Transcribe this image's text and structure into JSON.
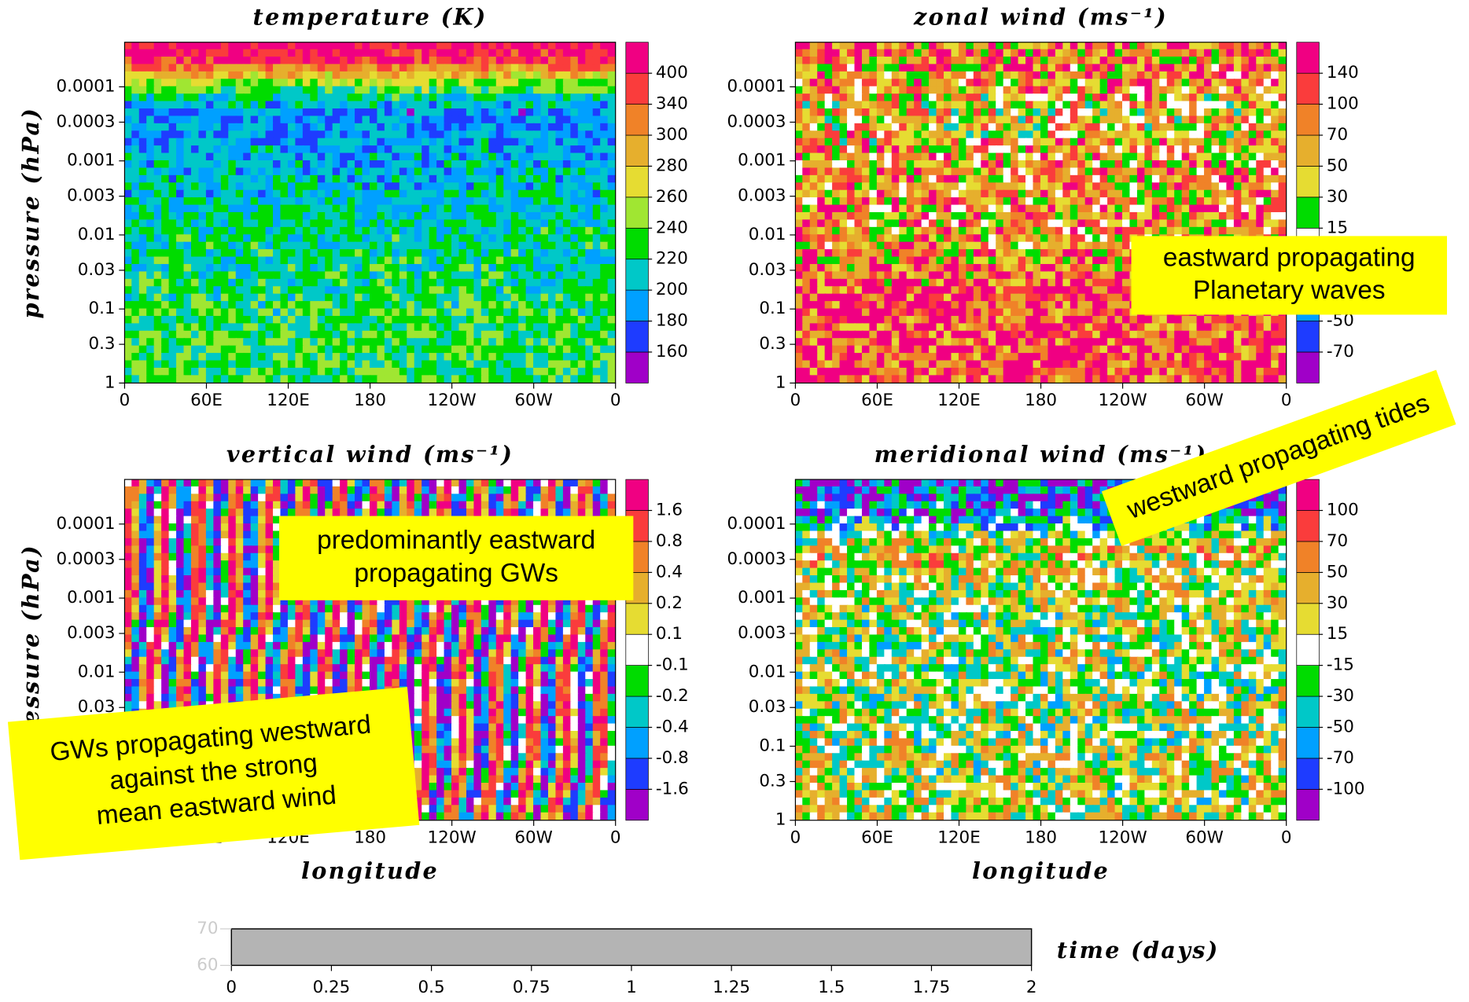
{
  "chart_data": [
    {
      "type": "contour",
      "title": "temperature (K)",
      "ylabel": "pressure (hPa)",
      "xlim": [
        0,
        360
      ],
      "xticks": [
        0,
        {
          "value": 60,
          "label": "60E"
        },
        {
          "value": 120,
          "label": "120E"
        },
        180,
        {
          "value": 240,
          "label": "120W"
        },
        {
          "value": 300,
          "label": "60W"
        },
        {
          "value": 360,
          "label": "0"
        }
      ],
      "ylim": [
        1,
        2.5e-05
      ],
      "ylog": true,
      "yticks": [
        0.0001,
        0.0003,
        0.001,
        0.003,
        0.01,
        0.03,
        0.1,
        0.3,
        1
      ],
      "levels": [
        160,
        180,
        200,
        220,
        240,
        260,
        280,
        300,
        340,
        400
      ],
      "colors": [
        "#a000c8",
        "#1e3cff",
        "#00a0ff",
        "#00c8c8",
        "#00dc00",
        "#a0e632",
        "#e6dc32",
        "#e6af2d",
        "#f08228",
        "#fa3c3c",
        "#f00082"
      ]
    },
    {
      "type": "contour",
      "title": "zonal wind (ms⁻¹)",
      "xlim": [
        0,
        360
      ],
      "xticks": [
        0,
        {
          "value": 60,
          "label": "60E"
        },
        {
          "value": 120,
          "label": "120E"
        },
        180,
        {
          "value": 240,
          "label": "120W"
        },
        {
          "value": 300,
          "label": "60W"
        },
        {
          "value": 360,
          "label": "0"
        }
      ],
      "ylim": [
        1,
        2.5e-05
      ],
      "ylog": true,
      "yticks": [
        0.0001,
        0.0003,
        0.001,
        0.003,
        0.01,
        0.03,
        0.1,
        0.3,
        1
      ],
      "levels": [
        -70,
        -50,
        null,
        null,
        15,
        30,
        50,
        70,
        100,
        140
      ],
      "colors": [
        "#a000c8",
        "#1e3cff",
        "#00a0ff",
        "#00c8c8",
        "#ffffff",
        "#00dc00",
        "#e6dc32",
        "#e6af2d",
        "#f08228",
        "#fa3c3c",
        "#f00082"
      ]
    },
    {
      "type": "contour",
      "title": "vertical wind (ms⁻¹)",
      "ylabel": "pressure (hPa)",
      "xlabel": "longitude",
      "xlim": [
        0,
        360
      ],
      "xticks": [
        0,
        {
          "value": 60,
          "label": "60E"
        },
        {
          "value": 120,
          "label": "120E"
        },
        180,
        {
          "value": 240,
          "label": "120W"
        },
        {
          "value": 300,
          "label": "60W"
        },
        {
          "value": 360,
          "label": "0"
        }
      ],
      "ylim": [
        1,
        2.5e-05
      ],
      "ylog": true,
      "yticks": [
        0.0001,
        0.0003,
        0.001,
        0.003,
        0.01,
        0.03,
        0.1,
        0.3,
        1
      ],
      "levels": [
        -1.6,
        -0.8,
        -0.4,
        -0.2,
        -0.1,
        0.1,
        0.2,
        0.4,
        0.8,
        1.6
      ],
      "colors": [
        "#a000c8",
        "#1e3cff",
        "#00a0ff",
        "#00c8c8",
        "#00dc00",
        "#ffffff",
        "#e6dc32",
        "#e6af2d",
        "#f08228",
        "#fa3c3c",
        "#f00082"
      ]
    },
    {
      "type": "contour",
      "title": "meridional wind (ms⁻¹)",
      "xlabel": "longitude",
      "xlim": [
        0,
        360
      ],
      "xticks": [
        0,
        {
          "value": 60,
          "label": "60E"
        },
        {
          "value": 120,
          "label": "120E"
        },
        180,
        {
          "value": 240,
          "label": "120W"
        },
        {
          "value": 300,
          "label": "60W"
        },
        {
          "value": 360,
          "label": "0"
        }
      ],
      "ylim": [
        1,
        2.5e-05
      ],
      "ylog": true,
      "yticks": [
        0.0001,
        0.0003,
        0.001,
        0.003,
        0.01,
        0.03,
        0.1,
        0.3,
        1
      ],
      "levels": [
        -100,
        -70,
        -50,
        -30,
        -15,
        15,
        30,
        50,
        70,
        100
      ],
      "colors": [
        "#a000c8",
        "#1e3cff",
        "#00a0ff",
        "#00c8c8",
        "#00dc00",
        "#ffffff",
        "#e6dc32",
        "#e6af2d",
        "#f08228",
        "#fa3c3c",
        "#f00082"
      ]
    },
    {
      "type": "timebar",
      "xlabel": "time (days)",
      "xlim": [
        0,
        2
      ],
      "xticks": [
        0,
        0.25,
        0.5,
        0.75,
        1,
        1.25,
        1.5,
        1.75,
        2
      ],
      "ylim": [
        60,
        70
      ],
      "yticks": [
        60,
        70
      ],
      "value": 2,
      "color": "#b4b4b4"
    }
  ],
  "annotations": [
    {
      "lines": [
        "eastward propagating",
        "Planetary waves"
      ]
    },
    {
      "lines": [
        "westward propagating tides"
      ]
    },
    {
      "lines": [
        "predominantly eastward",
        "propagating GWs"
      ]
    },
    {
      "lines": [
        "GWs propagating westward",
        "against the strong",
        "mean eastward wind"
      ]
    }
  ]
}
